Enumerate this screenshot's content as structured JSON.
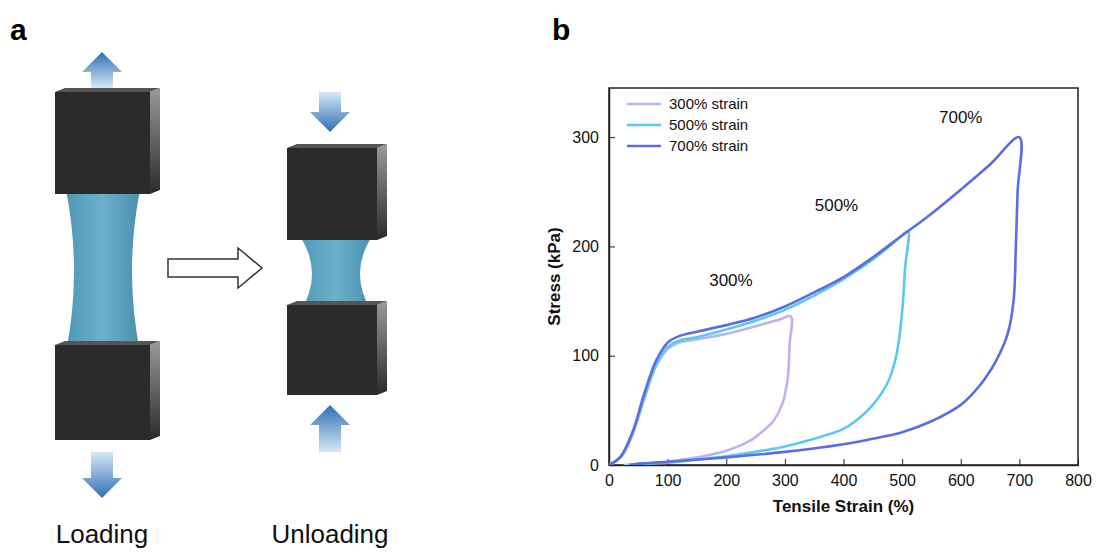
{
  "diagram": {
    "label": "a",
    "captions": [
      "Loading",
      "Unloading"
    ]
  },
  "chart_data": {
    "type": "line",
    "panel": "b",
    "x_label": "Tensile Strain (%)",
    "y_label": "Stress (kPa)",
    "xlim": [
      0,
      800
    ],
    "ylim": [
      0,
      345
    ],
    "xticks": [
      0,
      100,
      200,
      300,
      400,
      500,
      600,
      700,
      800
    ],
    "yticks": [
      0,
      100,
      200,
      300
    ],
    "legend": "upper left",
    "series": [
      {
        "name": "300% strain",
        "color": "#b3b8ef",
        "x": [
          0,
          20,
          40,
          60,
          80,
          100,
          120,
          150,
          200,
          250,
          290,
          310,
          308,
          305,
          295,
          280,
          260,
          240,
          200,
          150,
          100,
          50,
          25
        ],
        "values": [
          0,
          7,
          28,
          60,
          90,
          106,
          112,
          115,
          120,
          127,
          133,
          136,
          110,
          80,
          55,
          40,
          30,
          22,
          13,
          7,
          3,
          1,
          0
        ]
      },
      {
        "name": "500% strain",
        "color": "#5bc8ee",
        "x": [
          0,
          20,
          40,
          60,
          80,
          100,
          120,
          150,
          200,
          250,
          300,
          350,
          400,
          450,
          500,
          510,
          505,
          500,
          490,
          475,
          450,
          420,
          400,
          350,
          300,
          250,
          200,
          150,
          100,
          50,
          35
        ],
        "values": [
          0,
          7,
          28,
          62,
          92,
          108,
          114,
          117,
          124,
          132,
          142,
          155,
          170,
          188,
          210,
          214,
          180,
          140,
          100,
          75,
          55,
          40,
          33,
          24,
          17,
          12,
          8,
          5,
          2,
          1,
          0
        ]
      },
      {
        "name": "700% strain",
        "color": "#5a6ee0",
        "x": [
          0,
          20,
          40,
          60,
          80,
          100,
          120,
          150,
          200,
          250,
          300,
          350,
          400,
          450,
          500,
          550,
          600,
          650,
          700,
          697,
          694,
          690,
          680,
          660,
          640,
          620,
          600,
          550,
          500,
          450,
          400,
          300,
          200,
          100,
          50,
          35
        ],
        "values": [
          0,
          8,
          30,
          65,
          95,
          112,
          118,
          122,
          128,
          135,
          145,
          158,
          172,
          190,
          210,
          230,
          252,
          275,
          300,
          250,
          200,
          150,
          120,
          95,
          78,
          65,
          55,
          40,
          30,
          24,
          19,
          12,
          7,
          3,
          1,
          0
        ]
      }
    ],
    "annotations": [
      {
        "text": "300%",
        "x": 208,
        "y": 164
      },
      {
        "text": "500%",
        "x": 388,
        "y": 232
      },
      {
        "text": "700%",
        "x": 600,
        "y": 313
      }
    ]
  }
}
